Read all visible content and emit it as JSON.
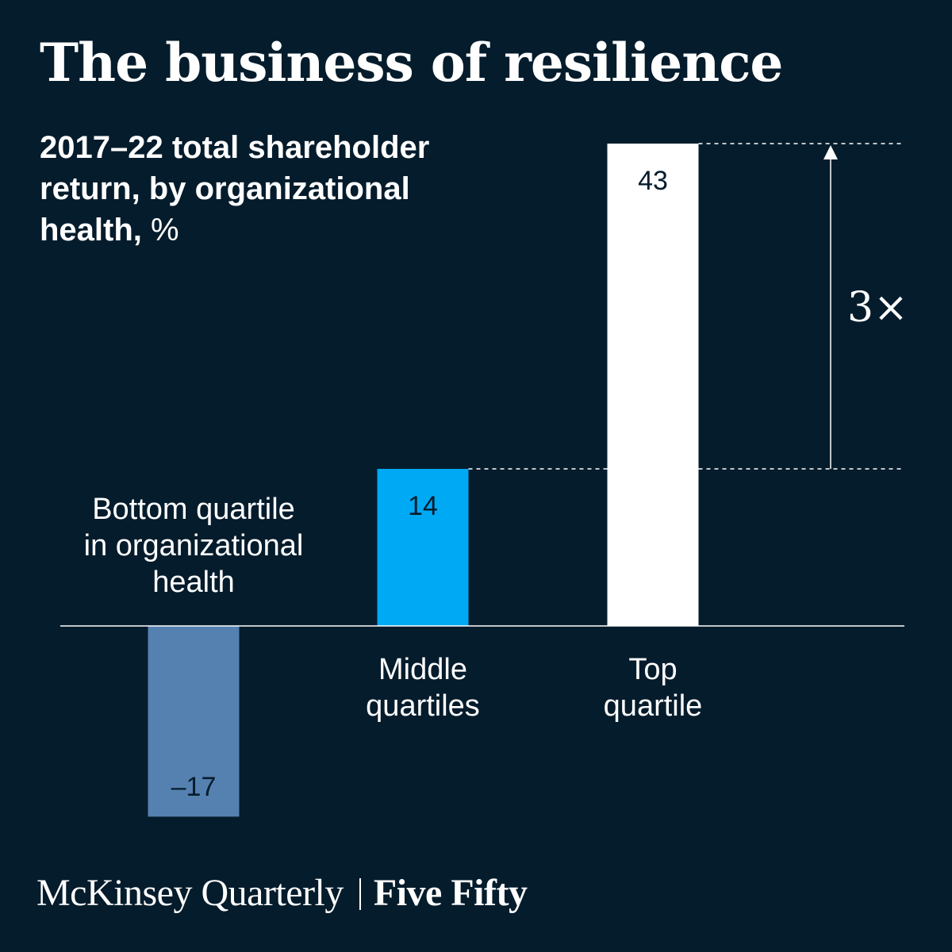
{
  "title": "The business of resilience",
  "subtitle": {
    "bold": "2017–22 total shareholder return, by organizational health,",
    "unit": "%"
  },
  "chart_data": {
    "type": "bar",
    "categories": [
      "Bottom quartile in organizational health",
      "Middle quartiles",
      "Top quartile"
    ],
    "category_lines": [
      [
        "Bottom quartile",
        "in organizational",
        "health"
      ],
      [
        "Middle",
        "quartiles"
      ],
      [
        "Top",
        "quartile"
      ]
    ],
    "values": [
      -17,
      14,
      43
    ],
    "value_labels": [
      "–17",
      "14",
      "43"
    ],
    "colors": [
      "#5581b1",
      "#00a9f4",
      "#ffffff"
    ],
    "ylim": [
      -17,
      43
    ],
    "grid": false,
    "annotation": "3×"
  },
  "footer": {
    "publication": "McKinsey Quarterly",
    "series": "Five Fifty"
  }
}
